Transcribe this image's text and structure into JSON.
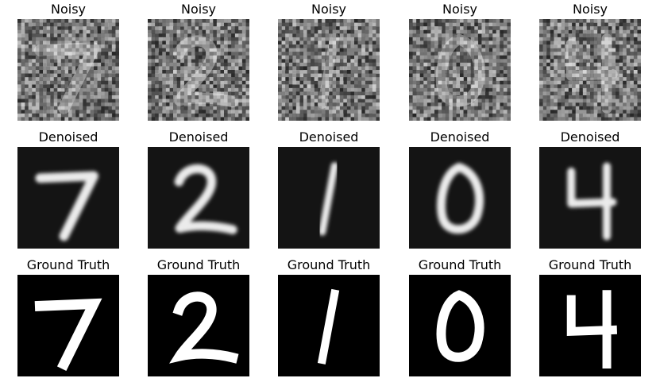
{
  "figure": {
    "columns": [
      {
        "digit": "7",
        "rows": [
          {
            "title": "Noisy",
            "kind": "noisy"
          },
          {
            "title": "Denoised",
            "kind": "denoised"
          },
          {
            "title": "Ground Truth",
            "kind": "truth"
          }
        ]
      },
      {
        "digit": "2",
        "rows": [
          {
            "title": "Noisy",
            "kind": "noisy"
          },
          {
            "title": "Denoised",
            "kind": "denoised"
          },
          {
            "title": "Ground Truth",
            "kind": "truth"
          }
        ]
      },
      {
        "digit": "1",
        "rows": [
          {
            "title": "Noisy",
            "kind": "noisy"
          },
          {
            "title": "Denoised",
            "kind": "denoised"
          },
          {
            "title": "Ground Truth",
            "kind": "truth"
          }
        ]
      },
      {
        "digit": "0",
        "rows": [
          {
            "title": "Noisy",
            "kind": "noisy"
          },
          {
            "title": "Denoised",
            "kind": "denoised"
          },
          {
            "title": "Ground Truth",
            "kind": "truth"
          }
        ]
      },
      {
        "digit": "4",
        "rows": [
          {
            "title": "Noisy",
            "kind": "noisy"
          },
          {
            "title": "Denoised",
            "kind": "denoised"
          },
          {
            "title": "Ground Truth",
            "kind": "truth"
          }
        ]
      }
    ]
  }
}
